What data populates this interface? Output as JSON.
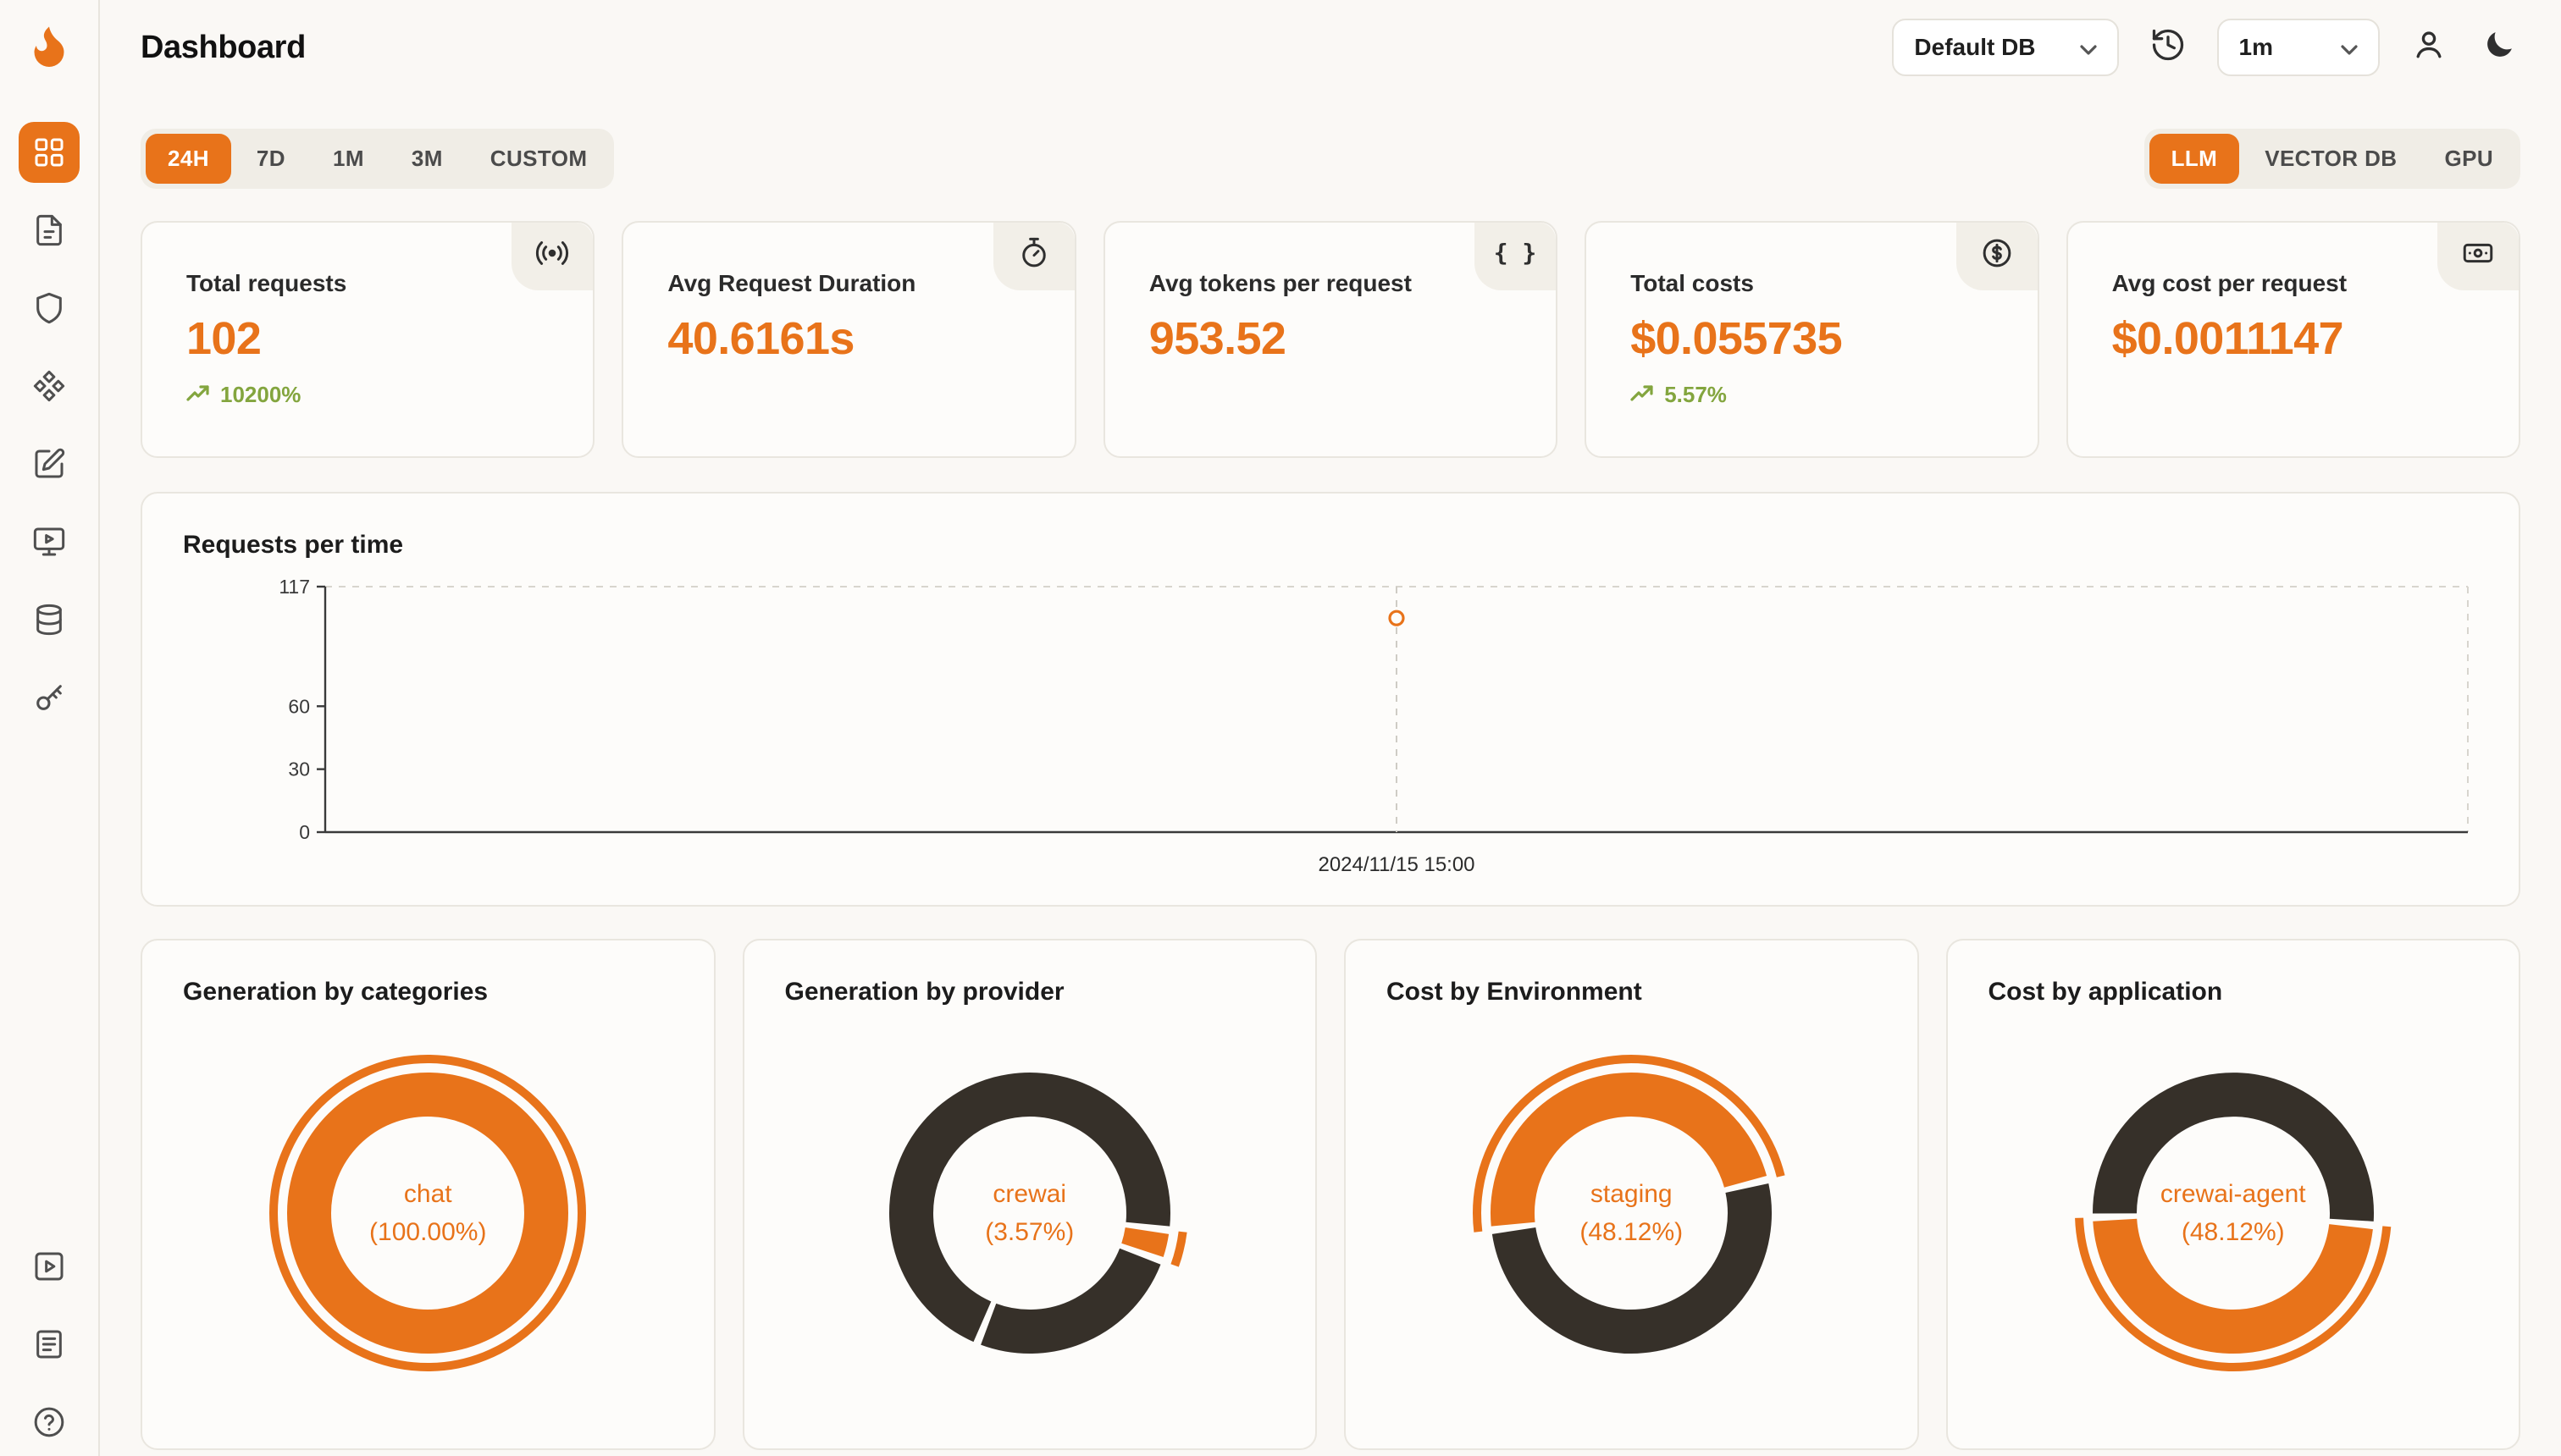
{
  "colors": {
    "accent": "#E8731A",
    "dark": "#363029",
    "green": "#83A53E"
  },
  "app": {
    "title": "Dashboard"
  },
  "header": {
    "db_select": "Default DB",
    "interval_select": "1m"
  },
  "tabs": {
    "time_ranges": [
      "24H",
      "7D",
      "1M",
      "3M",
      "CUSTOM"
    ],
    "time_active": "24H",
    "sources": [
      "LLM",
      "VECTOR DB",
      "GPU"
    ],
    "source_active": "LLM"
  },
  "stats": [
    {
      "label": "Total requests",
      "value": "102",
      "delta": "10200%",
      "icon": "broadcast-icon"
    },
    {
      "label": "Avg Request Duration",
      "value": "40.6161s",
      "icon": "timer-icon"
    },
    {
      "label": "Avg tokens per request",
      "value": "953.52",
      "icon": "braces-icon"
    },
    {
      "label": "Total costs",
      "value": "$0.055735",
      "delta": "5.57%",
      "icon": "dollar-circle-icon"
    },
    {
      "label": "Avg cost per request",
      "value": "$0.0011147",
      "icon": "banknote-icon"
    }
  ],
  "chart_data": [
    {
      "type": "scatter",
      "title": "Requests per time",
      "x": [
        "2024/11/15 15:00"
      ],
      "values": [
        102
      ],
      "ylim": [
        0,
        117
      ],
      "yticks": [
        0,
        30,
        60,
        117
      ],
      "x_fraction": 0.5,
      "grid": "dashed-border",
      "legend": "none"
    },
    {
      "type": "pie",
      "title": "Generation by categories",
      "center_label": "chat",
      "center_pct": "(100.00%)",
      "start_angle": 0,
      "segments": [
        {
          "label": "chat",
          "value": 100,
          "color": "#E8731A"
        }
      ],
      "outer_arc": {
        "start": 0,
        "sweep": 360
      }
    },
    {
      "type": "pie",
      "title": "Generation by provider",
      "center_label": "crewai",
      "center_pct": "(3.57%)",
      "start_angle": 97,
      "segments": [
        {
          "label": "crewai",
          "value": 3.57,
          "color": "#E8731A"
        },
        {
          "value": 25.6,
          "color": "#363029"
        },
        {
          "value": 70.83,
          "color": "#363029"
        }
      ],
      "outer_arc": {
        "start": 97,
        "sweep": 12.9
      }
    },
    {
      "type": "pie",
      "title": "Cost by Environment",
      "center_label": "staging",
      "center_pct": "(48.12%)",
      "start_angle": 263,
      "segments": [
        {
          "label": "staging",
          "value": 48.12,
          "color": "#E8731A"
        },
        {
          "value": 51.88,
          "color": "#363029"
        }
      ],
      "outer_arc": {
        "start": 263,
        "sweep": 173.2
      }
    },
    {
      "type": "pie",
      "title": "Cost by application",
      "center_label": "crewai-agent",
      "center_pct": "(48.12%)",
      "start_angle": 95,
      "segments": [
        {
          "label": "crewai-agent",
          "value": 48.12,
          "color": "#E8731A"
        },
        {
          "value": 51.88,
          "color": "#363029"
        }
      ],
      "outer_arc": {
        "start": 95,
        "sweep": 173.2
      }
    }
  ]
}
